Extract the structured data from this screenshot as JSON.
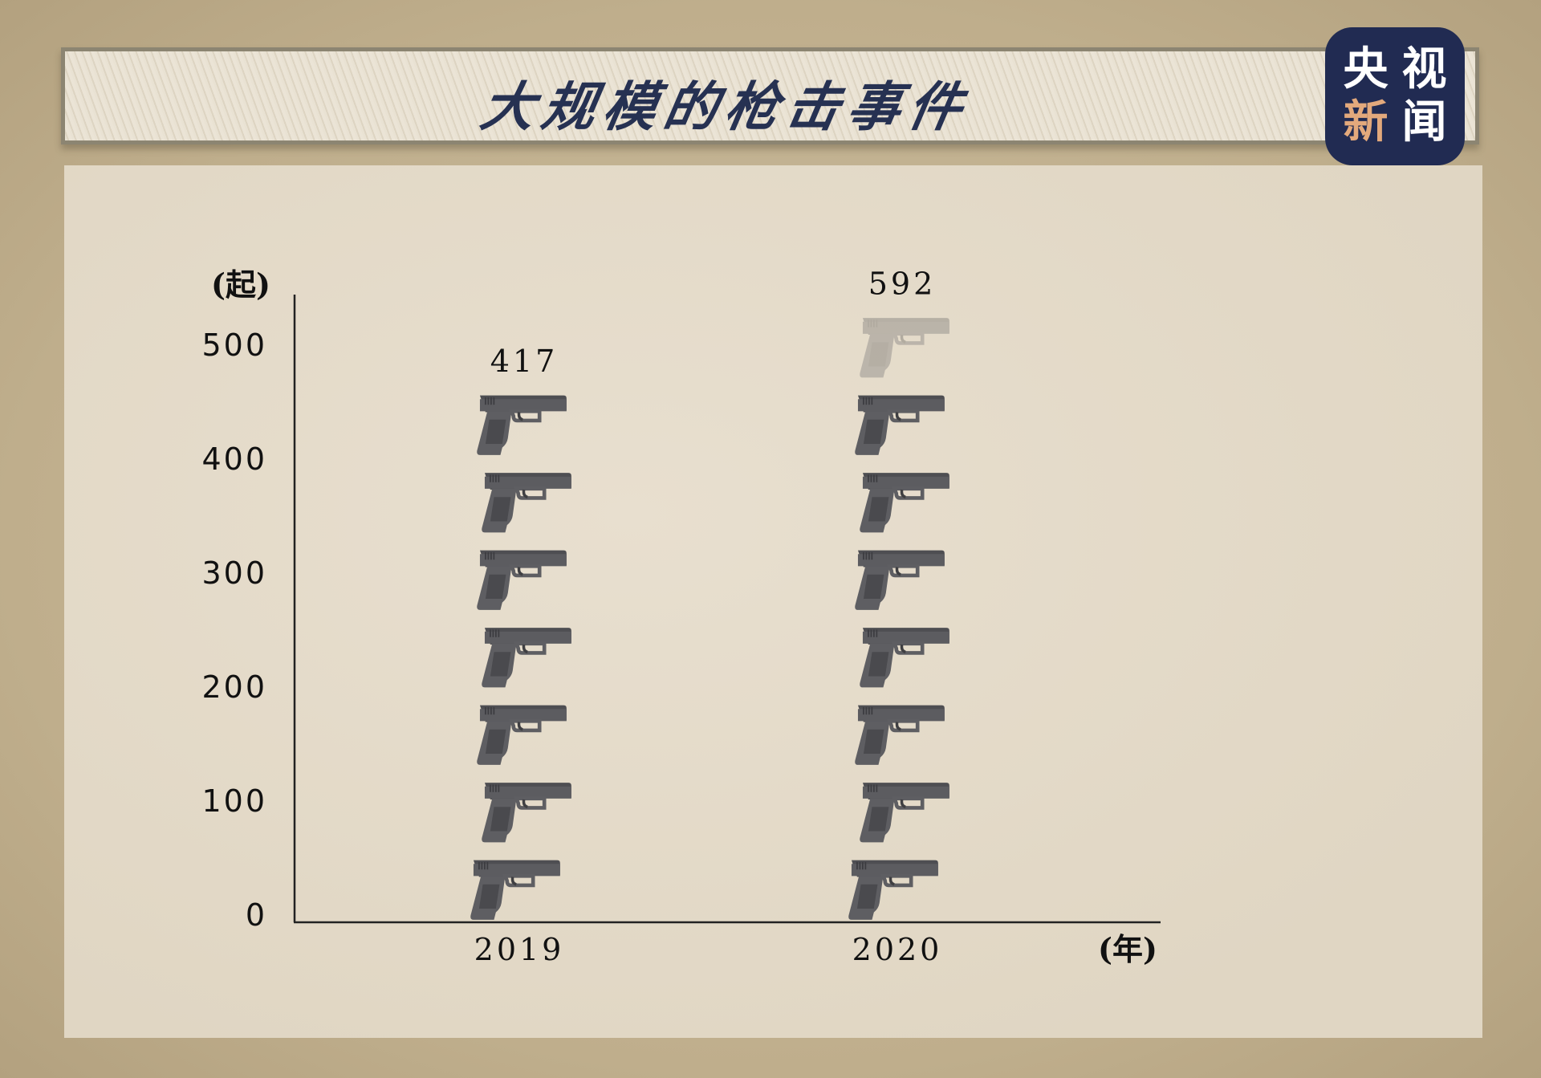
{
  "header": {
    "title": "大规模的枪击事件",
    "logo": [
      "央",
      "视",
      "新",
      "闻"
    ]
  },
  "colors": {
    "title": "#263152",
    "logo_bg": "#212b52",
    "logo_accent": "#e3a97c",
    "icon": "#58585c"
  },
  "chart_data": {
    "type": "bar",
    "style": "pictogram (pistol icons stacked)",
    "title": "大规模的枪击事件",
    "categories": [
      "2019",
      "2020"
    ],
    "values": [
      417,
      592
    ],
    "data_labels": [
      "417",
      "592"
    ],
    "xlabel": "(年)",
    "ylabel": "(起)",
    "ylim": [
      0,
      500
    ],
    "yticks": [
      "0",
      "100",
      "200",
      "300",
      "400",
      "500"
    ],
    "grid": false,
    "legend": "none"
  }
}
